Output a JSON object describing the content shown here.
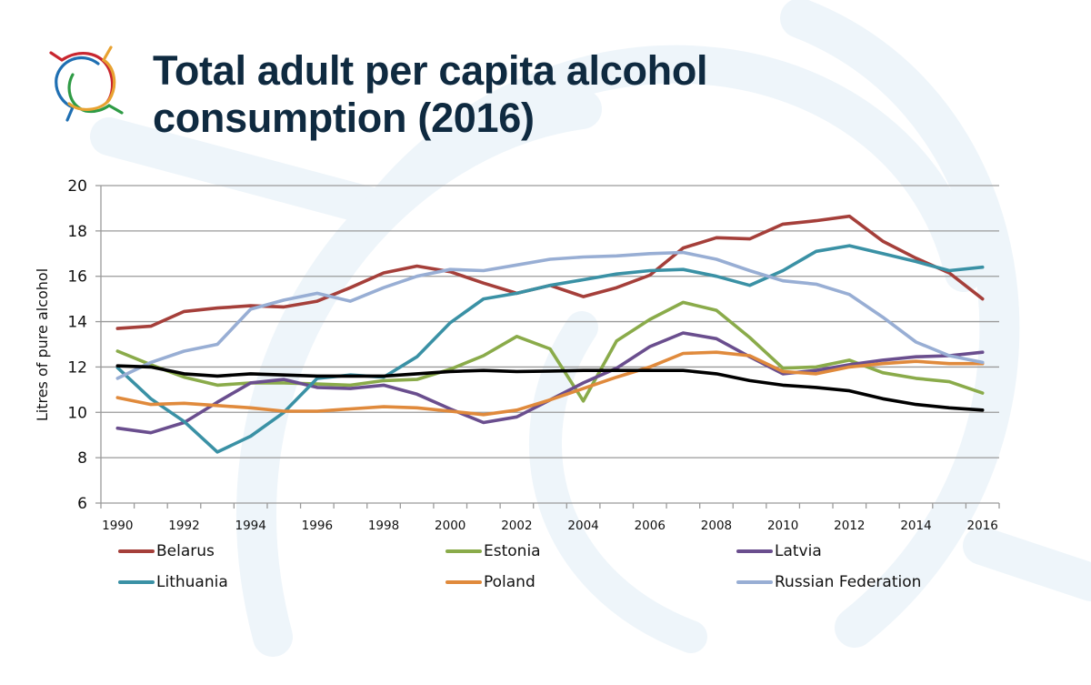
{
  "title": {
    "line1": "Total adult per capita alcohol",
    "line2": "consumption (2016)"
  },
  "logo": {
    "name": "organisation-logo",
    "colors": [
      "#c8262f",
      "#1f6fb2",
      "#2f9b45",
      "#e8a231"
    ]
  },
  "chart_data": {
    "type": "line",
    "title": "Total adult per capita alcohol consumption (2016)",
    "xlabel": "",
    "ylabel": "Litres of pure alcohol",
    "ylim": [
      6,
      20
    ],
    "yticks": [
      "6",
      "8",
      "10",
      "12",
      "14",
      "16",
      "18",
      "20"
    ],
    "ytick_values": [
      6,
      8,
      10,
      12,
      14,
      16,
      18,
      20
    ],
    "grid": true,
    "legend_position": "bottom",
    "x": [
      1990,
      1991,
      1992,
      1993,
      1994,
      1995,
      1996,
      1997,
      1998,
      1999,
      2000,
      2001,
      2002,
      2003,
      2004,
      2005,
      2006,
      2007,
      2008,
      2009,
      2010,
      2011,
      2012,
      2013,
      2014,
      2015,
      2016
    ],
    "xtick_labels": [
      "1990",
      "1992",
      "1994",
      "1996",
      "1998",
      "2000",
      "2002",
      "2004",
      "2006",
      "2008",
      "2010",
      "2012",
      "2014",
      "2016"
    ],
    "series": [
      {
        "name": "Belarus",
        "color": "#a53f3a",
        "in_legend": true,
        "values": [
          13.7,
          13.8,
          14.45,
          14.6,
          14.7,
          14.65,
          14.9,
          15.5,
          16.15,
          16.45,
          16.2,
          15.7,
          15.25,
          15.6,
          15.1,
          15.5,
          16.05,
          17.25,
          17.7,
          17.65,
          18.3,
          18.45,
          18.65,
          17.55,
          16.8,
          16.15,
          15.0
        ]
      },
      {
        "name": "Estonia",
        "color": "#8aab4a",
        "in_legend": true,
        "values": [
          12.7,
          12.1,
          11.55,
          11.2,
          11.3,
          11.3,
          11.25,
          11.2,
          11.4,
          11.45,
          11.9,
          12.5,
          13.35,
          12.8,
          10.5,
          13.15,
          14.1,
          14.85,
          14.5,
          13.3,
          11.95,
          12.0,
          12.3,
          11.75,
          11.5,
          11.35,
          10.85
        ]
      },
      {
        "name": "Latvia",
        "color": "#6a4e8e",
        "in_legend": true,
        "values": [
          9.3,
          9.1,
          9.55,
          10.45,
          11.3,
          11.45,
          11.1,
          11.05,
          11.2,
          10.8,
          10.15,
          9.55,
          9.8,
          10.55,
          11.3,
          11.95,
          12.9,
          13.5,
          13.25,
          12.45,
          11.7,
          11.85,
          12.1,
          12.3,
          12.45,
          12.5,
          12.65
        ]
      },
      {
        "name": "Lithuania",
        "color": "#3a91a5",
        "in_legend": true,
        "values": [
          11.97,
          10.6,
          9.6,
          8.25,
          8.95,
          10.0,
          11.5,
          11.65,
          11.55,
          12.45,
          13.95,
          15.0,
          15.25,
          15.6,
          15.85,
          16.1,
          16.25,
          16.3,
          16.0,
          15.6,
          16.25,
          17.1,
          17.35,
          17.0,
          16.65,
          16.25,
          16.4
        ]
      },
      {
        "name": "Poland",
        "color": "#e08a3c",
        "in_legend": true,
        "values": [
          10.65,
          10.35,
          10.4,
          10.3,
          10.2,
          10.05,
          10.05,
          10.15,
          10.25,
          10.2,
          10.05,
          9.9,
          10.1,
          10.55,
          11.05,
          11.55,
          12.0,
          12.6,
          12.65,
          12.5,
          11.8,
          11.7,
          12.0,
          12.15,
          12.25,
          12.15,
          12.15
        ]
      },
      {
        "name": "Russian Federation",
        "color": "#98aed4",
        "in_legend": true,
        "values": [
          11.5,
          12.2,
          12.7,
          13.0,
          14.55,
          14.95,
          15.25,
          14.9,
          15.5,
          16.0,
          16.3,
          16.25,
          16.5,
          16.75,
          16.85,
          16.9,
          17.0,
          17.05,
          16.75,
          16.25,
          15.8,
          15.65,
          15.2,
          14.2,
          13.1,
          12.5,
          12.2
        ]
      },
      {
        "name": "",
        "color": "#000000",
        "in_legend": false,
        "values": [
          12.05,
          12.0,
          11.7,
          11.6,
          11.7,
          11.65,
          11.6,
          11.6,
          11.6,
          11.7,
          11.8,
          11.85,
          11.8,
          11.82,
          11.85,
          11.85,
          11.85,
          11.85,
          11.7,
          11.4,
          11.2,
          11.1,
          10.95,
          10.6,
          10.35,
          10.2,
          10.1
        ]
      }
    ]
  }
}
